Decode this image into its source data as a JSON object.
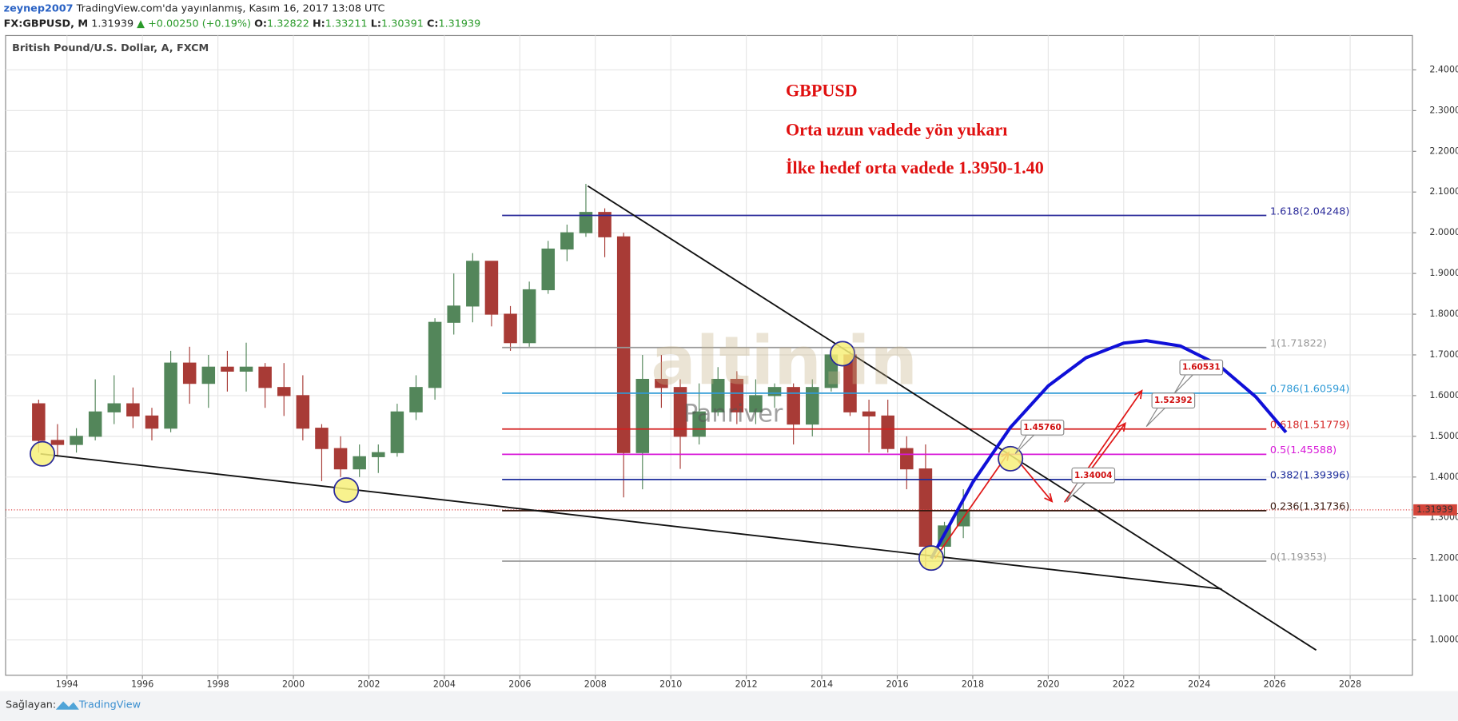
{
  "header": {
    "user": "zeynep2007",
    "published": "TradingView.com'da yayınlanmış, Kasım 16, 2017 13:08 UTC",
    "symbol": "FX:GBPUSD, M",
    "last": "1.31939",
    "change": "▲ +0.00250 (+0.19%)",
    "o_label": "O:",
    "o": "1.32822",
    "h_label": "H:",
    "h": "1.33211",
    "l_label": "L:",
    "l": "1.30391",
    "c_label": "C:",
    "c": "1.31939"
  },
  "footer": {
    "provider": "Sağlayan:",
    "brand": "TradingView"
  },
  "chart_data": {
    "type": "candlestick",
    "title": "British Pound/U.S. Dollar, A, FXCM",
    "annotations": [
      "GBPUSD",
      "Orta uzun vadede yön yukarı",
      "İlke hedef orta vadede 1.3950-1.40"
    ],
    "watermark": [
      "altin.in",
      "Panriver"
    ],
    "xlim": [
      1992.374,
      2029.65
    ],
    "ylim": [
      0.9132,
      2.4844
    ],
    "xticks": [
      1994,
      1996,
      1998,
      2000,
      2002,
      2004,
      2006,
      2008,
      2010,
      2012,
      2014,
      2016,
      2018,
      2020,
      2022,
      2024,
      2026,
      2028
    ],
    "yticks": [
      {
        "value": 1.0,
        "label": "1.00000"
      },
      {
        "value": 1.1,
        "label": "1.10000"
      },
      {
        "value": 1.2,
        "label": "1.20000"
      },
      {
        "value": 1.3,
        "label": "1.30000"
      },
      {
        "value": 1.4,
        "label": "1.40000"
      },
      {
        "value": 1.5,
        "label": "1.50000"
      },
      {
        "value": 1.6,
        "label": "1.60000"
      },
      {
        "value": 1.7,
        "label": "1.70000"
      },
      {
        "value": 1.8,
        "label": "1.80000"
      },
      {
        "value": 1.9,
        "label": "1.90000"
      },
      {
        "value": 2.0,
        "label": "2.00000"
      },
      {
        "value": 2.1,
        "label": "2.10000"
      },
      {
        "value": 2.2,
        "label": "2.20000"
      },
      {
        "value": 2.3,
        "label": "2.30000"
      },
      {
        "value": 2.4,
        "label": "2.40000"
      }
    ],
    "grid": true,
    "up_color": "#53865a",
    "down_color": "#a83b36",
    "candles": {
      "x": [
        1993.25,
        1993.75,
        1994.25,
        1994.75,
        1995.25,
        1995.75,
        1996.25,
        1996.75,
        1997.25,
        1997.75,
        1998.25,
        1998.75,
        1999.25,
        1999.75,
        2000.25,
        2000.75,
        2001.25,
        2001.75,
        2002.25,
        2002.75,
        2003.25,
        2003.75,
        2004.25,
        2004.75,
        2005.25,
        2005.75,
        2006.25,
        2006.75,
        2007.25,
        2007.75,
        2008.25,
        2008.75,
        2009.25,
        2009.75,
        2010.25,
        2010.75,
        2011.25,
        2011.75,
        2012.25,
        2012.75,
        2013.25,
        2013.75,
        2014.25,
        2014.75,
        2015.25,
        2015.75,
        2016.25,
        2016.75,
        2017.25,
        2017.75
      ],
      "open": [
        1.58,
        1.49,
        1.48,
        1.5,
        1.56,
        1.58,
        1.55,
        1.52,
        1.68,
        1.63,
        1.67,
        1.66,
        1.67,
        1.62,
        1.6,
        1.52,
        1.47,
        1.42,
        1.45,
        1.46,
        1.56,
        1.62,
        1.78,
        1.82,
        1.93,
        1.8,
        1.73,
        1.86,
        1.96,
        2.0,
        2.05,
        1.99,
        1.46,
        1.64,
        1.62,
        1.5,
        1.56,
        1.64,
        1.56,
        1.6,
        1.62,
        1.53,
        1.62,
        1.7,
        1.56,
        1.55,
        1.47,
        1.42,
        1.23,
        1.28
      ],
      "high": [
        1.59,
        1.53,
        1.52,
        1.64,
        1.65,
        1.62,
        1.57,
        1.71,
        1.72,
        1.7,
        1.71,
        1.73,
        1.68,
        1.68,
        1.65,
        1.53,
        1.5,
        1.48,
        1.48,
        1.58,
        1.65,
        1.79,
        1.9,
        1.95,
        1.93,
        1.82,
        1.88,
        1.98,
        2.02,
        2.12,
        2.06,
        2.0,
        1.7,
        1.7,
        1.64,
        1.63,
        1.67,
        1.66,
        1.64,
        1.63,
        1.63,
        1.64,
        1.72,
        1.71,
        1.59,
        1.59,
        1.5,
        1.48,
        1.29,
        1.37
      ],
      "low": [
        1.46,
        1.45,
        1.46,
        1.49,
        1.53,
        1.52,
        1.49,
        1.51,
        1.58,
        1.57,
        1.61,
        1.61,
        1.57,
        1.55,
        1.49,
        1.39,
        1.4,
        1.4,
        1.41,
        1.45,
        1.54,
        1.59,
        1.75,
        1.78,
        1.77,
        1.71,
        1.72,
        1.85,
        1.93,
        1.99,
        1.94,
        1.35,
        1.37,
        1.57,
        1.42,
        1.48,
        1.55,
        1.53,
        1.53,
        1.57,
        1.48,
        1.5,
        1.61,
        1.55,
        1.46,
        1.46,
        1.37,
        1.18,
        1.2,
        1.25
      ],
      "close": [
        1.49,
        1.48,
        1.5,
        1.56,
        1.58,
        1.55,
        1.52,
        1.68,
        1.63,
        1.67,
        1.66,
        1.67,
        1.62,
        1.6,
        1.52,
        1.47,
        1.42,
        1.45,
        1.46,
        1.56,
        1.62,
        1.78,
        1.82,
        1.93,
        1.8,
        1.73,
        1.86,
        1.96,
        2.0,
        2.05,
        1.99,
        1.46,
        1.64,
        1.62,
        1.5,
        1.56,
        1.64,
        1.56,
        1.6,
        1.62,
        1.53,
        1.62,
        1.7,
        1.56,
        1.55,
        1.47,
        1.42,
        1.23,
        1.28,
        1.32
      ]
    },
    "levels_x": [
      2005.53,
      2025.78
    ],
    "levels": [
      {
        "label": "1.618(2.04248)",
        "value": 2.04248,
        "color": "#2a2a9a"
      },
      {
        "label": "1(1.71822)",
        "value": 1.71822,
        "color": "#999999"
      },
      {
        "label": "0.786(1.60594)",
        "value": 1.60594,
        "color": "#2f9ad6"
      },
      {
        "label": "0.618(1.51779)",
        "value": 1.51779,
        "color": "#d42020"
      },
      {
        "label": "0.5(1.45588)",
        "value": 1.45588,
        "color": "#d818d8"
      },
      {
        "label": "0.382(1.39396)",
        "value": 1.39396,
        "color": "#1d2d9c"
      },
      {
        "label": "0.236(1.31736)",
        "value": 1.31736,
        "color": "#3a1a10"
      },
      {
        "label": "0(1.19353)",
        "value": 1.19353,
        "color": "#999999"
      }
    ],
    "trendlines": [
      {
        "x": [
          2007.8,
          2027.1
        ],
        "y": [
          2.115,
          0.975
        ]
      },
      {
        "x": [
          1993.3,
          2024.6
        ],
        "y": [
          1.457,
          1.125
        ]
      }
    ],
    "circles": {
      "x": [
        1993.35,
        2001.4,
        2014.55,
        2016.9,
        2019.0
      ],
      "y": [
        1.457,
        1.368,
        1.703,
        1.201,
        1.445
      ]
    },
    "arc": {
      "color": "#1010d8",
      "x": [
        2016.9,
        2018.0,
        2019.0,
        2020.0,
        2021.0,
        2022.0,
        2022.6,
        2023.5,
        2024.5,
        2025.5,
        2026.3
      ],
      "y": [
        1.2,
        1.387,
        1.522,
        1.624,
        1.693,
        1.729,
        1.735,
        1.722,
        1.676,
        1.597,
        1.51
      ]
    },
    "arrows": [
      {
        "x": [
          2017.0,
          2018.95
        ],
        "y": [
          1.2,
          1.46
        ]
      },
      {
        "x": [
          2019.2,
          2020.1
        ],
        "y": [
          1.44,
          1.34
        ]
      },
      {
        "x": [
          2020.43,
          2022.48
        ],
        "y": [
          1.338,
          1.612
        ]
      },
      {
        "x": [
          2020.5,
          2022.04
        ],
        "y": [
          1.34,
          1.532
        ]
      }
    ],
    "callouts": [
      {
        "value": 1.4576,
        "label": "1.45760",
        "x": 2019.13
      },
      {
        "value": 1.34004,
        "label": "1.34004",
        "x": 2020.48
      },
      {
        "value": 1.52392,
        "label": "1.52392",
        "x": 2022.6
      },
      {
        "value": 1.60531,
        "label": "1.60531",
        "x": 2023.34
      }
    ],
    "last_price": {
      "value": 1.31939,
      "label": "1.31939"
    }
  }
}
